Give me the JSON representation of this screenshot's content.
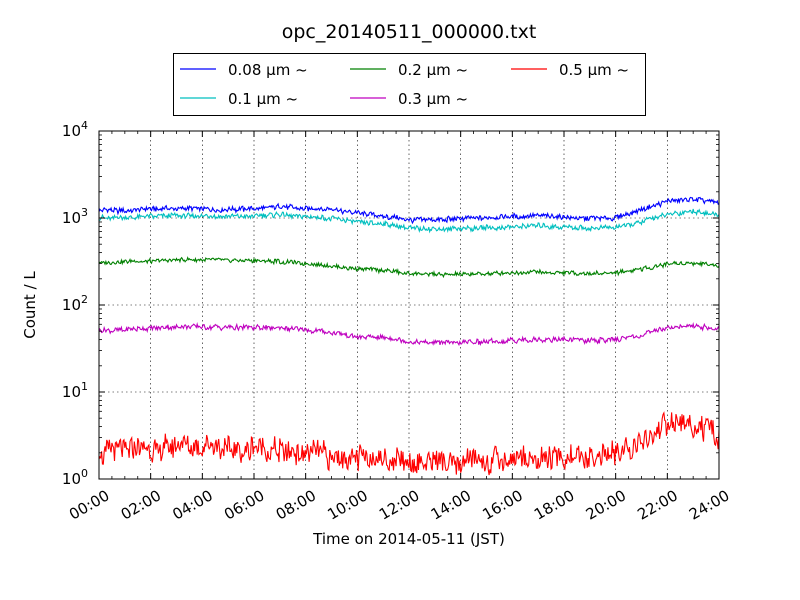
{
  "chart_data": {
    "type": "line",
    "title": "opc_20140511_000000.txt",
    "xlabel": "Time on 2014-05-11 (JST)",
    "ylabel": "Count / L",
    "y_scale": "log",
    "ylim": [
      1,
      10000
    ],
    "xlim": [
      "00:00",
      "24:00"
    ],
    "grid": true,
    "legend_position": "top, outside plot, 3 columns",
    "x_tick_labels": [
      "00:00",
      "02:00",
      "04:00",
      "06:00",
      "08:00",
      "10:00",
      "12:00",
      "14:00",
      "16:00",
      "18:00",
      "20:00",
      "22:00",
      "24:00"
    ],
    "y_ticks": [
      {
        "base": "10",
        "exp": "0"
      },
      {
        "base": "10",
        "exp": "1"
      },
      {
        "base": "10",
        "exp": "2"
      },
      {
        "base": "10",
        "exp": "3"
      },
      {
        "base": "10",
        "exp": "4"
      }
    ],
    "x_hours": [
      0,
      1,
      2,
      3,
      4,
      5,
      6,
      7,
      8,
      9,
      10,
      11,
      12,
      13,
      14,
      15,
      16,
      17,
      18,
      19,
      20,
      21,
      22,
      23,
      24
    ],
    "series": [
      {
        "name": "0.08 µm ~",
        "color": "#0000ff",
        "values": [
          1250,
          1200,
          1270,
          1300,
          1280,
          1250,
          1280,
          1350,
          1300,
          1250,
          1150,
          1050,
          950,
          950,
          980,
          1000,
          1040,
          1060,
          1020,
          990,
          1010,
          1250,
          1550,
          1650,
          1500
        ]
      },
      {
        "name": "0.1 µm ~",
        "color": "#00bfbf",
        "values": [
          1000,
          1020,
          1030,
          1060,
          1060,
          1030,
          1050,
          1100,
          1050,
          980,
          900,
          850,
          770,
          740,
          760,
          770,
          790,
          810,
          790,
          760,
          780,
          900,
          1100,
          1200,
          1080
        ]
      },
      {
        "name": "0.2 µm ~",
        "color": "#008000",
        "values": [
          305,
          315,
          320,
          330,
          330,
          325,
          325,
          315,
          300,
          280,
          260,
          250,
          230,
          225,
          225,
          230,
          235,
          240,
          235,
          230,
          235,
          260,
          295,
          305,
          285
        ]
      },
      {
        "name": "0.3 µm ~",
        "color": "#bf00bf",
        "values": [
          50,
          52,
          54,
          56,
          56,
          55,
          55,
          54,
          52,
          48,
          44,
          42,
          38,
          37,
          37,
          38,
          39,
          40,
          40,
          39,
          40,
          45,
          55,
          58,
          52
        ]
      },
      {
        "name": "0.5 µm ~",
        "color": "#ff0000",
        "values": [
          2.0,
          2.1,
          2.2,
          2.4,
          2.3,
          2.2,
          2.2,
          2.1,
          2.0,
          1.8,
          1.7,
          1.65,
          1.6,
          1.55,
          1.55,
          1.6,
          1.65,
          1.7,
          1.75,
          1.8,
          1.9,
          2.5,
          4.2,
          4.0,
          3.2
        ]
      }
    ]
  }
}
